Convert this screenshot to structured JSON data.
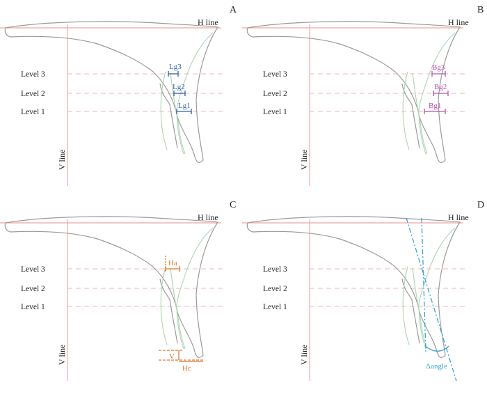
{
  "panels": [
    {
      "letter": "A",
      "h_line": "H line",
      "v_line": "V line",
      "levels": [
        "Level 3",
        "Level 2",
        "Level 1"
      ],
      "measurements": [
        "Lg3",
        "Lg2",
        "Lg1"
      ],
      "color": "#2f5ea8"
    },
    {
      "letter": "B",
      "h_line": "H line",
      "v_line": "V line",
      "levels": [
        "Level 3",
        "Level 2",
        "Level 1"
      ],
      "measurements": [
        "Bg3",
        "Bg2",
        "Bg1"
      ],
      "color": "#b550b5"
    },
    {
      "letter": "C",
      "h_line": "H line",
      "v_line": "V line",
      "levels": [
        "Level 3",
        "Level 2",
        "Level 1"
      ],
      "measurements": [
        "Ha",
        "V",
        "Hc"
      ],
      "color": "#e2752b"
    },
    {
      "letter": "D",
      "h_line": "H line",
      "v_line": "V line",
      "levels": [
        "Level 3",
        "Level 2",
        "Level 1"
      ],
      "measurements": [
        "Δangle"
      ],
      "color": "#3aa3d4"
    }
  ]
}
